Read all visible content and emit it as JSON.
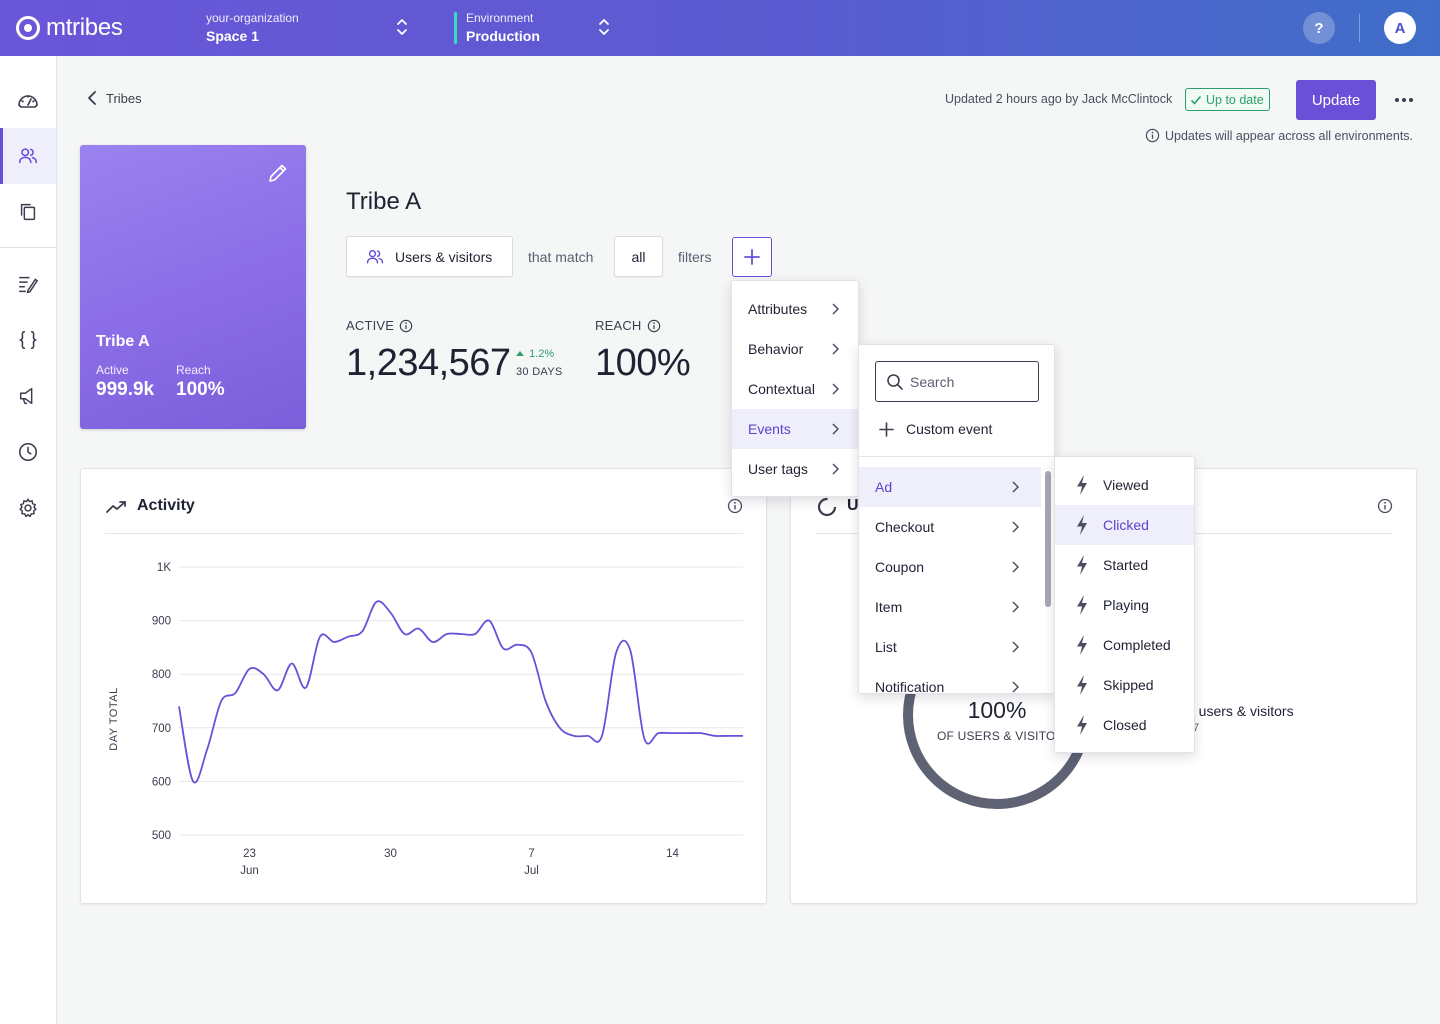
{
  "app": {
    "name": "mtribes"
  },
  "header": {
    "org_label": "your-organization",
    "space_value": "Space 1",
    "env_label": "Environment",
    "env_value": "Production",
    "help_label": "?",
    "avatar_initial": "A",
    "accent": "#6a4fd8",
    "env_color": "#3ed9c8"
  },
  "sidebar": {
    "items": [
      {
        "icon": "dashboard-icon"
      },
      {
        "icon": "users-icon",
        "active": true
      },
      {
        "icon": "copy-icon"
      },
      {
        "icon": "edit-list-icon"
      },
      {
        "icon": "braces-icon"
      },
      {
        "icon": "megaphone-icon"
      },
      {
        "icon": "clock-icon"
      },
      {
        "icon": "gear-icon"
      }
    ]
  },
  "breadcrumb": {
    "back_label": "Tribes"
  },
  "status": {
    "updated_text": "Updated 2 hours ago by Jack McClintock",
    "badge_label": "Up to date",
    "update_button": "Update",
    "note": "Updates will appear across all environments."
  },
  "tribe_card": {
    "name": "Tribe A",
    "active_label": "Active",
    "active_value": "999.9k",
    "reach_label": "Reach",
    "reach_value": "100%"
  },
  "tribe": {
    "title": "Tribe A",
    "audience_chip": "Users & visitors",
    "that_match": "that match",
    "match_mode": "all",
    "filters_word": "filters"
  },
  "stats": {
    "active_label": "ACTIVE",
    "active_value": "1,234,567",
    "trend_value": "1.2%",
    "trend_period": "30 DAYS",
    "reach_label": "REACH",
    "reach_value": "100%"
  },
  "activity": {
    "title": "Activity"
  },
  "chart_data": {
    "type": "line",
    "title": "Activity",
    "ylabel": "DAY TOTAL",
    "xlabel": "",
    "ylim": [
      500,
      1000
    ],
    "yticks": [
      {
        "value": 500,
        "label": "500"
      },
      {
        "value": 600,
        "label": "600"
      },
      {
        "value": 700,
        "label": "700"
      },
      {
        "value": 800,
        "label": "800"
      },
      {
        "value": 900,
        "label": "900"
      },
      {
        "value": 1000,
        "label": "1K"
      }
    ],
    "xlim": [
      0,
      40
    ],
    "xticks": [
      {
        "value": 5,
        "label": "23",
        "sub": "Jun"
      },
      {
        "value": 15,
        "label": "30",
        "sub": ""
      },
      {
        "value": 25,
        "label": "7",
        "sub": "Jul"
      },
      {
        "value": 35,
        "label": "14",
        "sub": ""
      }
    ],
    "grid": true,
    "series": [
      {
        "x": [
          0,
          1,
          2,
          3,
          4,
          5,
          6,
          7,
          8,
          9,
          10,
          11,
          12,
          13,
          14,
          15,
          16,
          17,
          18,
          19,
          20,
          21,
          22,
          23,
          24,
          25,
          26,
          27,
          28,
          29,
          30,
          31,
          32,
          33,
          34,
          35,
          36,
          37,
          38,
          39,
          40
        ],
        "values": [
          740,
          600,
          660,
          750,
          765,
          810,
          800,
          770,
          820,
          775,
          870,
          860,
          870,
          880,
          935,
          915,
          875,
          885,
          860,
          875,
          875,
          875,
          900,
          848,
          855,
          840,
          750,
          700,
          685,
          685,
          685,
          840,
          845,
          680,
          690,
          690,
          690,
          690,
          685,
          685,
          685
        ],
        "color": "#6a4fd8"
      }
    ]
  },
  "reach_panel": {
    "title_fragment": "U",
    "donut_value": "100%",
    "donut_sub": "OF USERS & VISITORS",
    "legend_text": "d users & visitors",
    "legend_sub": "7",
    "ring_color": "#5e6273"
  },
  "filter_menu": {
    "items": [
      {
        "label": "Attributes"
      },
      {
        "label": "Behavior"
      },
      {
        "label": "Contextual"
      },
      {
        "label": "Events",
        "highlighted": true
      },
      {
        "label": "User tags"
      }
    ]
  },
  "events_menu": {
    "search_placeholder": "Search",
    "custom_event": "Custom event",
    "items": [
      {
        "label": "Ad",
        "highlighted": true
      },
      {
        "label": "Checkout"
      },
      {
        "label": "Coupon"
      },
      {
        "label": "Item"
      },
      {
        "label": "List"
      },
      {
        "label": "Notification"
      }
    ]
  },
  "ad_menu": {
    "items": [
      {
        "label": "Viewed"
      },
      {
        "label": "Clicked",
        "highlighted": true
      },
      {
        "label": "Started"
      },
      {
        "label": "Playing"
      },
      {
        "label": "Completed"
      },
      {
        "label": "Skipped"
      },
      {
        "label": "Closed"
      }
    ]
  }
}
